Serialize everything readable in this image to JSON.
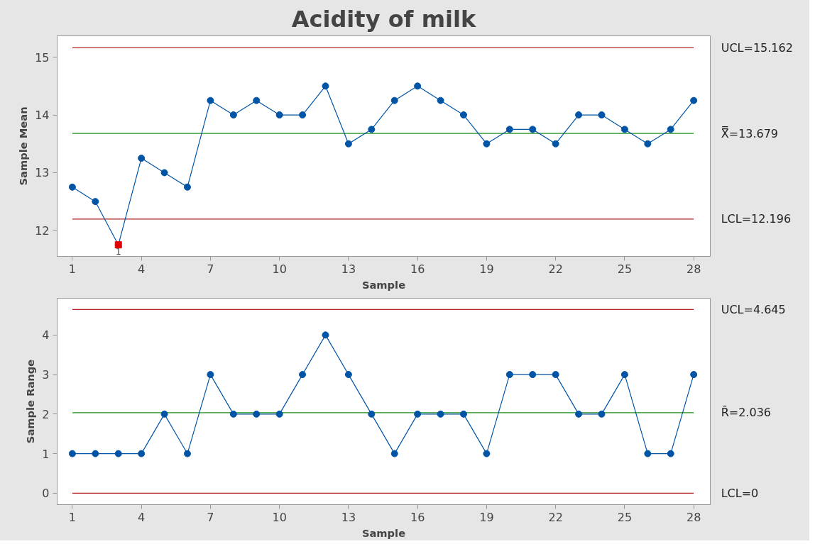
{
  "chart_data": [
    {
      "type": "line",
      "title": "Acidity of milk",
      "xlabel": "Sample",
      "ylabel": "Sample Mean",
      "x": [
        1,
        2,
        3,
        4,
        5,
        6,
        7,
        8,
        9,
        10,
        11,
        12,
        13,
        14,
        15,
        16,
        17,
        18,
        19,
        20,
        21,
        22,
        23,
        24,
        25,
        26,
        27,
        28
      ],
      "series": [
        {
          "color": "#0054a6",
          "colors": [
            "#0054a6",
            "#0054a6",
            "#e00000",
            "#0054a6",
            "#0054a6",
            "#0054a6",
            "#0054a6",
            "#0054a6",
            "#0054a6",
            "#0054a6",
            "#0054a6",
            "#0054a6",
            "#0054a6",
            "#0054a6",
            "#0054a6",
            "#0054a6",
            "#0054a6",
            "#0054a6",
            "#0054a6",
            "#0054a6",
            "#0054a6",
            "#0054a6",
            "#0054a6",
            "#0054a6",
            "#0054a6",
            "#0054a6",
            "#0054a6",
            "#0054a6"
          ],
          "values": [
            12.75,
            12.5,
            11.75,
            13.25,
            13.0,
            12.75,
            14.25,
            14.0,
            14.25,
            14.0,
            14.0,
            14.5,
            13.5,
            13.75,
            14.25,
            14.5,
            14.25,
            14.0,
            13.5,
            13.75,
            13.75,
            13.5,
            14.0,
            14.0,
            13.75,
            13.5,
            13.75,
            14.25
          ]
        }
      ],
      "marker": "circle",
      "line_style": "solid",
      "grid": false,
      "xlim": [
        0.34,
        28.72
      ],
      "ylim": [
        11.55,
        15.37
      ],
      "xticks": [
        1,
        4,
        7,
        10,
        13,
        16,
        19,
        22,
        25,
        28
      ],
      "yticks": [
        12,
        13,
        14,
        15
      ],
      "ref_lines": [
        {
          "axis": "y",
          "value": 15.162,
          "label": "UCL=15.162",
          "color": "#b22222"
        },
        {
          "axis": "y",
          "value": 13.679,
          "label": "X̿=13.679",
          "color": "#1a8f1a"
        },
        {
          "axis": "y",
          "value": 12.196,
          "label": "LCL=12.196",
          "color": "#b22222"
        }
      ],
      "annotations": [
        {
          "text": "1",
          "x": 3,
          "y": 11.75
        }
      ]
    },
    {
      "type": "line",
      "xlabel": "Sample",
      "ylabel": "Sample Range",
      "x": [
        1,
        2,
        3,
        4,
        5,
        6,
        7,
        8,
        9,
        10,
        11,
        12,
        13,
        14,
        15,
        16,
        17,
        18,
        19,
        20,
        21,
        22,
        23,
        24,
        25,
        26,
        27,
        28
      ],
      "series": [
        {
          "color": "#0054a6",
          "values": [
            1,
            1,
            1,
            1,
            2,
            1,
            3,
            2,
            2,
            2,
            3,
            4,
            3,
            2,
            1,
            2,
            2,
            2,
            1,
            3,
            3,
            3,
            2,
            2,
            3,
            1,
            1,
            3
          ]
        }
      ],
      "marker": "circle",
      "line_style": "solid",
      "grid": false,
      "xlim": [
        0.34,
        28.72
      ],
      "ylim": [
        -0.29,
        4.93
      ],
      "xticks": [
        1,
        4,
        7,
        10,
        13,
        16,
        19,
        22,
        25,
        28
      ],
      "yticks": [
        0,
        1,
        2,
        3,
        4
      ],
      "ref_lines": [
        {
          "axis": "y",
          "value": 4.645,
          "label": "UCL=4.645",
          "color": "#b22222"
        },
        {
          "axis": "y",
          "value": 2.036,
          "label": "R̄=2.036",
          "color": "#1a8f1a"
        },
        {
          "axis": "y",
          "value": 0,
          "label": "LCL=0",
          "color": "#b22222"
        }
      ]
    }
  ]
}
